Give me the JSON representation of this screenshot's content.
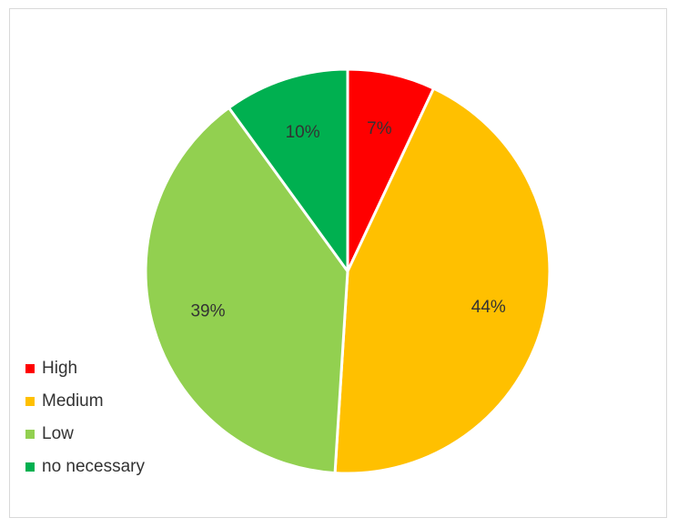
{
  "chart_data": {
    "type": "pie",
    "title": "",
    "categories": [
      "High",
      "Medium",
      "Low",
      "no necessary"
    ],
    "values": [
      7,
      44,
      39,
      10
    ],
    "value_labels": [
      "7%",
      "44%",
      "39%",
      "10%"
    ],
    "colors": [
      "#FF0000",
      "#FFC000",
      "#92D050",
      "#00B050"
    ],
    "legend_position": "bottom-left",
    "start_angle": "12 o'clock",
    "direction": "clockwise"
  }
}
